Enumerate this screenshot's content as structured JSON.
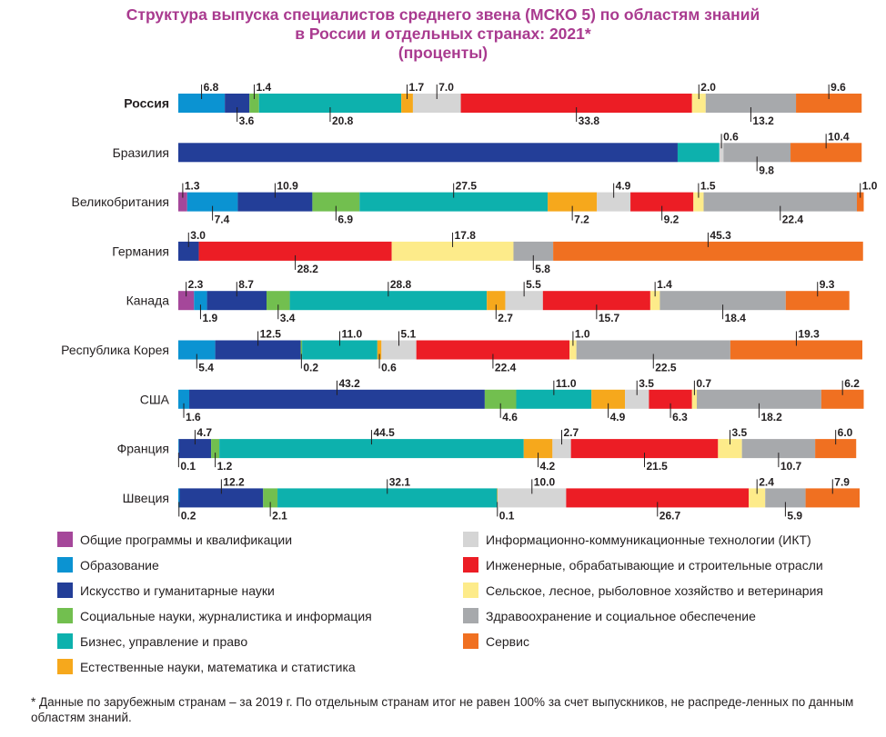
{
  "title": {
    "line1": "Структура выпуска специалистов среднего звена (МСКО 5) по областям знаний",
    "line2": "в России и отдельных странах: 2021*",
    "line3": "(проценты)"
  },
  "chart_data": {
    "type": "bar",
    "orientation": "horizontal",
    "stacked": true,
    "xlim": [
      0,
      100
    ],
    "grid": false,
    "legend_position": "bottom",
    "categories": [
      "Россия",
      "Бразилия",
      "Великобритания",
      "Германия",
      "Канада",
      "Республика Корея",
      "США",
      "Франция",
      "Швеция"
    ],
    "series": [
      {
        "name": "Общие программы и квалификации",
        "color": "#a5479a",
        "values": [
          null,
          null,
          1.3,
          null,
          2.3,
          null,
          null,
          null,
          null
        ]
      },
      {
        "name": "Образование",
        "color": "#0b93d2",
        "values": [
          6.8,
          null,
          7.4,
          null,
          1.9,
          5.4,
          1.6,
          0.1,
          0.2
        ]
      },
      {
        "name": "Искусство и гуманитарные науки",
        "color": "#233e98",
        "values": [
          3.6,
          73.0,
          10.9,
          3.0,
          8.7,
          12.5,
          43.2,
          4.7,
          12.2
        ]
      },
      {
        "name": "Социальные науки, журналистика и информация",
        "color": "#72bf4f",
        "values": [
          1.4,
          null,
          6.9,
          null,
          3.4,
          0.2,
          4.6,
          1.2,
          2.1
        ]
      },
      {
        "name": "Бизнес, управление и право",
        "color": "#0db1ad",
        "values": [
          20.8,
          6.1,
          27.5,
          null,
          28.8,
          11.0,
          11.0,
          44.5,
          32.1
        ]
      },
      {
        "name": "Естественные науки, математика и статистика",
        "color": "#f6a81c",
        "values": [
          1.7,
          null,
          7.2,
          null,
          2.7,
          0.6,
          4.9,
          4.2,
          0.1
        ]
      },
      {
        "name": "Информационно-коммуникационные технологии (ИКТ)",
        "color": "#d5d5d5",
        "values": [
          7.0,
          0.6,
          4.9,
          null,
          5.5,
          5.1,
          3.5,
          2.7,
          10.0
        ]
      },
      {
        "name": "Инженерные, обрабатывающие и строительные отрасли",
        "color": "#ec1d25",
        "values": [
          33.8,
          null,
          9.2,
          28.2,
          15.7,
          22.4,
          6.3,
          21.5,
          26.7
        ]
      },
      {
        "name": "Сельское, лесное, рыболовное хозяйство и ветеринария",
        "color": "#fdeb8a",
        "values": [
          2.0,
          null,
          1.5,
          17.8,
          1.4,
          1.0,
          0.7,
          3.5,
          2.4
        ]
      },
      {
        "name": "Здравоохранение и социальное обеспечение",
        "color": "#a7a9ac",
        "values": [
          13.2,
          9.8,
          22.4,
          5.8,
          18.4,
          22.5,
          18.2,
          10.7,
          5.9
        ]
      },
      {
        "name": "Сервис",
        "color": "#f07021",
        "values": [
          9.6,
          10.4,
          1.0,
          45.3,
          9.3,
          19.3,
          6.2,
          6.0,
          7.9
        ]
      }
    ],
    "label_placement": [
      [
        "below",
        "above",
        "below",
        "above",
        "below",
        "above",
        "above",
        "below",
        "above",
        "below",
        "above"
      ],
      [
        "",
        "above",
        "",
        "",
        "",
        "",
        "above",
        "",
        "",
        "below",
        "above"
      ],
      [
        "above",
        "below",
        "above",
        "below",
        "above",
        "below",
        "above",
        "below",
        "above",
        "below",
        "above"
      ],
      [
        "",
        "",
        "above",
        "",
        "",
        "",
        "",
        "below",
        "above",
        "below",
        "above"
      ],
      [
        "above",
        "below",
        "above",
        "below",
        "above",
        "below",
        "above",
        "below",
        "above",
        "below",
        "above"
      ],
      [
        "",
        "below",
        "above",
        "below",
        "above",
        "below",
        "above",
        "below",
        "above",
        "below",
        "above"
      ],
      [
        "",
        "below",
        "above",
        "below",
        "above",
        "below",
        "above",
        "below",
        "above",
        "below",
        "above"
      ],
      [
        "",
        "below",
        "above",
        "below",
        "above",
        "below",
        "above",
        "below",
        "above",
        "below",
        "above"
      ],
      [
        "",
        "below",
        "above",
        "below",
        "above",
        "below",
        "above",
        "below",
        "above",
        "below",
        "above"
      ]
    ]
  },
  "legend": {
    "left": [
      {
        "label": "Общие программы и квалификации",
        "color": "#a5479a"
      },
      {
        "label": "Образование",
        "color": "#0b93d2"
      },
      {
        "label": "Искусство и гуманитарные науки",
        "color": "#233e98"
      },
      {
        "label": "Социальные науки, журналистика и информация",
        "color": "#72bf4f"
      },
      {
        "label": "Бизнес, управление и право",
        "color": "#0db1ad"
      },
      {
        "label": "Естественные науки, математика и статистика",
        "color": "#f6a81c"
      }
    ],
    "right": [
      {
        "label": "Информационно-коммуникационные технологии (ИКТ)",
        "color": "#d5d5d5"
      },
      {
        "label": "Инженерные, обрабатывающие и строительные отрасли",
        "color": "#ec1d25"
      },
      {
        "label": "Сельское, лесное, рыболовное хозяйство и ветеринария",
        "color": "#fdeb8a"
      },
      {
        "label": "Здравоохранение и социальное обеспечение",
        "color": "#a7a9ac"
      },
      {
        "label": "Сервис",
        "color": "#f07021"
      }
    ]
  },
  "footnote": "* Данные по зарубежным странам – за 2019 г. По отдельным странам итог не равен 100% за счет выпускников, не распреде-ленных по данным областям знаний."
}
